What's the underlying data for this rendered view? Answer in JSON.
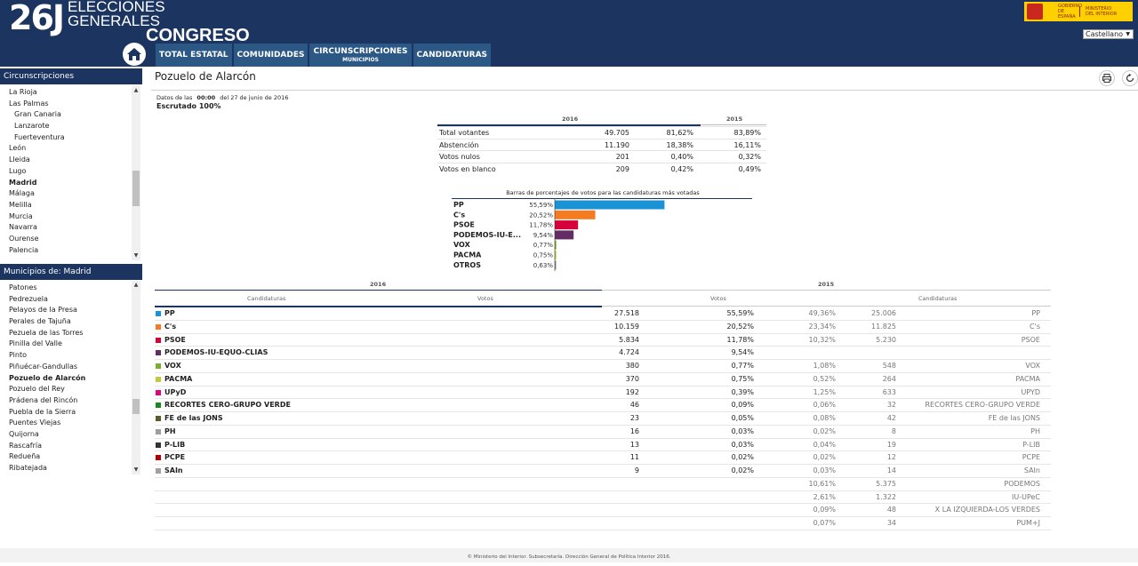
{
  "header": {
    "logo_number": "26J",
    "logo_line1": "ELECCIONES",
    "logo_line2": "GENERALES",
    "logo_congreso": "CONGRESO",
    "gov_text1": "GOBIERNO DE ESPAÑA",
    "gov_text2": "MINISTERIO DEL INTERIOR",
    "language": "Castellano"
  },
  "nav": {
    "home_icon": "home-icon",
    "items": [
      {
        "label": "TOTAL ESTATAL",
        "sub": ""
      },
      {
        "label": "COMUNIDADES",
        "sub": ""
      },
      {
        "label": "CIRCUNSCRIPCIONES",
        "sub": "MUNICIPIOS"
      },
      {
        "label": "CANDIDATURAS",
        "sub": ""
      }
    ]
  },
  "sidebar": {
    "circ_title": "Circunscripciones",
    "circ_items": [
      "La Rioja",
      "Las Palmas",
      "Gran Canaria",
      "Lanzarote",
      "Fuerteventura",
      "León",
      "Lleida",
      "Lugo",
      "Madrid",
      "Málaga",
      "Melilla",
      "Murcia",
      "Navarra",
      "Ourense",
      "Palencia"
    ],
    "circ_sub": [
      false,
      false,
      true,
      true,
      true,
      false,
      false,
      false,
      false,
      false,
      false,
      false,
      false,
      false,
      false
    ],
    "circ_active": "Madrid",
    "muni_title": "Municipios de: Madrid",
    "muni_items": [
      "Patones",
      "Pedrezuela",
      "Pelayos de la Presa",
      "Perales de Tajuña",
      "Pezuela de las Torres",
      "Pinilla del Valle",
      "Pinto",
      "Piñuécar-Gandullas",
      "Pozuelo de Alarcón",
      "Pozuelo del Rey",
      "Prádena del Rincón",
      "Puebla de la Sierra",
      "Puentes Viejas",
      "Quijorna",
      "Rascafría",
      "Redueña",
      "Ribatejada"
    ],
    "muni_active": "Pozuelo de Alarcón"
  },
  "main": {
    "title": "Pozuelo de Alarcón",
    "date_prefix": "Datos de las",
    "date_time": "00:00",
    "date_suffix": "del 27 de junio de 2016",
    "scrutiny": "Escrutado 100%",
    "print_icon": "print-icon",
    "refresh_icon": "refresh-icon"
  },
  "summary": {
    "year_2016": "2016",
    "year_2015": "2015",
    "rows": [
      {
        "label": "Total votantes",
        "v16": "49.705",
        "p16": "81,62%",
        "p15": "83,89%"
      },
      {
        "label": "Abstención",
        "v16": "11.190",
        "p16": "18,38%",
        "p15": "16,11%"
      },
      {
        "label": "Votos nulos",
        "v16": "201",
        "p16": "0,40%",
        "p15": "0,32%"
      },
      {
        "label": "Votos en blanco",
        "v16": "209",
        "p16": "0,42%",
        "p15": "0,49%"
      }
    ]
  },
  "chart_data": {
    "type": "bar",
    "title": "Barras de porcentajes de votos para las candidaturas más votadas",
    "categories": [
      "PP",
      "C's",
      "PSOE",
      "PODEMOS-IU-E...",
      "VOX",
      "PACMA",
      "OTROS"
    ],
    "values": [
      55.59,
      20.52,
      11.78,
      9.54,
      0.77,
      0.75,
      0.63
    ],
    "value_labels": [
      "55,59%",
      "20,52%",
      "11,78%",
      "9,54%",
      "0,77%",
      "0,75%",
      "0,63%"
    ],
    "colors": [
      "#1a93d6",
      "#f47b20",
      "#d6003a",
      "#612d62",
      "#7ab02a",
      "#c0c93c",
      "#888888"
    ],
    "xlim": [
      0,
      100
    ],
    "orientation": "horizontal"
  },
  "results": {
    "year_2016": "2016",
    "year_2015": "2015",
    "col_candidaturas": "Candidaturas",
    "col_votos": "Votos",
    "rows": [
      {
        "name": "PP",
        "color": "#1a93d6",
        "v16": "27.518",
        "p16": "55,59%",
        "v15": "25.006",
        "p15": "49,36%",
        "n15": "PP"
      },
      {
        "name": "C's",
        "color": "#f47b20",
        "v16": "10.159",
        "p16": "20,52%",
        "v15": "11.825",
        "p15": "23,34%",
        "n15": "C's"
      },
      {
        "name": "PSOE",
        "color": "#d6003a",
        "v16": "5.834",
        "p16": "11,78%",
        "v15": "5.230",
        "p15": "10,32%",
        "n15": "PSOE"
      },
      {
        "name": "PODEMOS-IU-EQUO-CLIAS",
        "color": "#612d62",
        "v16": "4.724",
        "p16": "9,54%",
        "v15": "",
        "p15": "",
        "n15": ""
      },
      {
        "name": "VOX",
        "color": "#7ab02a",
        "v16": "380",
        "p16": "0,77%",
        "v15": "548",
        "p15": "1,08%",
        "n15": "VOX"
      },
      {
        "name": "PACMA",
        "color": "#c0c93c",
        "v16": "370",
        "p16": "0,75%",
        "v15": "264",
        "p15": "0,52%",
        "n15": "PACMA"
      },
      {
        "name": "UPyD",
        "color": "#e5007e",
        "v16": "192",
        "p16": "0,39%",
        "v15": "633",
        "p15": "1,25%",
        "n15": "UPYD"
      },
      {
        "name": "RECORTES CERO-GRUPO VERDE",
        "color": "#138c1d",
        "v16": "46",
        "p16": "0,09%",
        "v15": "32",
        "p15": "0,06%",
        "n15": "RECORTES CERO-GRUPO VERDE"
      },
      {
        "name": "FE de las JONS",
        "color": "#5b5b2a",
        "v16": "23",
        "p16": "0,05%",
        "v15": "42",
        "p15": "0,08%",
        "n15": "FE de las JONS"
      },
      {
        "name": "PH",
        "color": "#9e9e9e",
        "v16": "16",
        "p16": "0,03%",
        "v15": "8",
        "p15": "0,02%",
        "n15": "PH"
      },
      {
        "name": "P-LIB",
        "color": "#333333",
        "v16": "13",
        "p16": "0,03%",
        "v15": "19",
        "p15": "0,04%",
        "n15": "P-LIB"
      },
      {
        "name": "PCPE",
        "color": "#b00000",
        "v16": "11",
        "p16": "0,02%",
        "v15": "12",
        "p15": "0,02%",
        "n15": "PCPE"
      },
      {
        "name": "SAIn",
        "color": "#a0a0a0",
        "v16": "9",
        "p16": "0,02%",
        "v15": "14",
        "p15": "0,03%",
        "n15": "SAIn"
      },
      {
        "name": "",
        "color": "",
        "v16": "",
        "p16": "",
        "v15": "5.375",
        "p15": "10,61%",
        "n15": "PODEMOS"
      },
      {
        "name": "",
        "color": "",
        "v16": "",
        "p16": "",
        "v15": "1.322",
        "p15": "2,61%",
        "n15": "IU-UPeC"
      },
      {
        "name": "",
        "color": "",
        "v16": "",
        "p16": "",
        "v15": "48",
        "p15": "0,09%",
        "n15": "X LA IZQUIERDA-LOS VERDES"
      },
      {
        "name": "",
        "color": "",
        "v16": "",
        "p16": "",
        "v15": "34",
        "p15": "0,07%",
        "n15": "PUM+J"
      }
    ]
  },
  "footer": {
    "text": "© Ministerio del Interior. Subsecretaría. Dirección General de Política Interior 2016."
  }
}
